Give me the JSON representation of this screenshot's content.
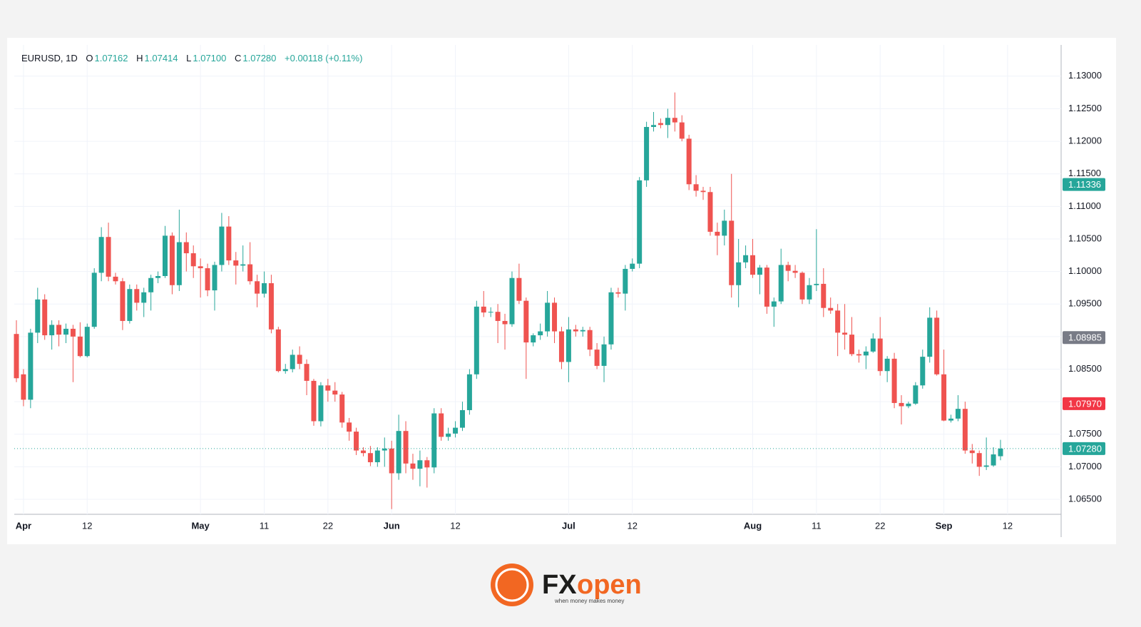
{
  "chart_data": {
    "type": "candlestick",
    "header": {
      "symbol": "EURUSD, 1D",
      "open": {
        "label": "O",
        "value": "1.07162"
      },
      "high": {
        "label": "H",
        "value": "1.07414"
      },
      "low": {
        "label": "L",
        "value": "1.07100"
      },
      "close": {
        "label": "C",
        "value": "1.07280"
      },
      "change": "+0.00118 (+0.11%)"
    },
    "up_color": "#26a69a",
    "down_color": "#ef5350",
    "categories": [
      null,
      "Apr",
      null,
      null,
      null,
      null,
      null,
      null,
      null,
      null,
      "12",
      null,
      null,
      null,
      null,
      null,
      null,
      null,
      null,
      null,
      null,
      null,
      null,
      null,
      null,
      null,
      "May",
      null,
      null,
      null,
      null,
      null,
      null,
      null,
      null,
      "11",
      null,
      null,
      null,
      null,
      null,
      null,
      null,
      null,
      "22",
      null,
      null,
      null,
      null,
      null,
      null,
      null,
      null,
      "Jun",
      null,
      null,
      null,
      null,
      null,
      null,
      null,
      null,
      "12",
      null,
      null,
      null,
      null,
      null,
      null,
      null,
      null,
      null,
      null,
      null,
      null,
      null,
      null,
      null,
      "Jul",
      null,
      null,
      null,
      null,
      null,
      null,
      null,
      null,
      "12",
      null,
      null,
      null,
      null,
      null,
      null,
      null,
      null,
      null,
      null,
      null,
      null,
      null,
      null,
      null,
      null,
      "Aug",
      null,
      null,
      null,
      null,
      null,
      null,
      null,
      null,
      "11",
      null,
      null,
      null,
      null,
      null,
      null,
      null,
      null,
      "22",
      null,
      null,
      null,
      null,
      null,
      null,
      null,
      null,
      "Sep",
      null,
      null,
      null,
      null,
      null,
      null,
      null,
      null,
      "12"
    ],
    "open": [
      1.0904,
      1.0842,
      1.0803,
      1.0906,
      1.0957,
      1.0902,
      1.0918,
      1.0903,
      1.0912,
      1.09,
      1.087,
      1.0915,
      1.0998,
      1.1053,
      1.0992,
      1.0985,
      1.0924,
      1.0973,
      1.0952,
      1.0968,
      1.099,
      1.0993,
      1.1055,
      1.0979,
      1.1045,
      1.1028,
      1.1008,
      1.1005,
      1.0971,
      1.101,
      1.1069,
      1.1017,
      1.1009,
      1.1011,
      1.0985,
      1.0966,
      1.0982,
      1.0911,
      1.0847,
      1.085,
      1.0872,
      1.0858,
      1.0832,
      1.077,
      1.0825,
      1.0817,
      1.0811,
      1.0768,
      1.0754,
      1.0725,
      1.0721,
      1.0707,
      1.0725,
      1.0728,
      1.069,
      1.0755,
      1.0705,
      1.0697,
      1.071,
      1.0699,
      1.0782,
      1.0746,
      1.0751,
      1.076,
      1.0787,
      1.0842,
      1.0946,
      1.0937,
      1.0938,
      1.0924,
      1.0919,
      1.099,
      1.0955,
      1.0891,
      1.0902,
      1.0908,
      1.0952,
      1.0908,
      1.0861,
      1.0911,
      1.0908,
      1.091,
      1.088,
      1.0855,
      1.0888,
      1.0968,
      1.0966,
      1.1004,
      1.1012,
      1.114,
      1.1222,
      1.1228,
      1.1225,
      1.1236,
      1.1229,
      1.1204,
      1.1134,
      1.1124,
      1.1122,
      1.1061,
      1.1055,
      1.1078,
      1.0979,
      1.1014,
      1.1025,
      1.0995,
      1.1006,
      1.0946,
      1.0954,
      1.101,
      1.1001,
      1.0998,
      1.0957,
      1.0979,
      1.0981,
      1.0944,
      1.094,
      1.0906,
      1.0903,
      1.0873,
      1.0871,
      1.0877,
      1.0897,
      1.0847,
      1.0866,
      1.0798,
      1.0793,
      1.0797,
      1.0825,
      1.0869,
      1.0929,
      1.0842,
      1.0771,
      1.0774,
      1.0789,
      1.0725,
      1.0721,
      1.07,
      1.0702,
      1.07162,
      null
    ],
    "high": [
      1.0925,
      1.085,
      1.0912,
      1.0975,
      1.0965,
      1.0925,
      1.0925,
      1.092,
      1.0918,
      1.0922,
      1.092,
      1.1005,
      1.1068,
      1.1075,
      1.0998,
      1.099,
      1.098,
      1.098,
      1.0975,
      1.0995,
      1.1,
      1.107,
      1.106,
      1.1095,
      1.106,
      1.104,
      1.102,
      1.1012,
      1.1015,
      1.109,
      1.1085,
      1.103,
      1.104,
      1.1045,
      1.0995,
      1.1,
      1.0995,
      1.0915,
      1.0858,
      1.088,
      1.0885,
      1.0865,
      1.0835,
      1.083,
      1.0835,
      1.083,
      1.0815,
      1.0775,
      1.076,
      1.073,
      1.0732,
      1.073,
      1.0745,
      1.074,
      1.078,
      1.077,
      1.072,
      1.0725,
      1.0715,
      1.079,
      1.079,
      1.076,
      1.077,
      1.08,
      1.085,
      1.0955,
      1.097,
      1.0945,
      1.095,
      1.0935,
      1.1,
      1.1012,
      1.096,
      1.0905,
      1.092,
      1.097,
      1.096,
      1.0915,
      1.093,
      1.0918,
      1.0915,
      1.0915,
      1.089,
      1.09,
      1.0975,
      1.0975,
      1.101,
      1.102,
      1.1145,
      1.123,
      1.1245,
      1.1235,
      1.125,
      1.1275,
      1.124,
      1.121,
      1.1148,
      1.113,
      1.113,
      1.1075,
      1.1095,
      1.115,
      1.105,
      1.104,
      1.105,
      1.101,
      1.101,
      1.096,
      1.1035,
      1.1015,
      1.101,
      1.1,
      1.099,
      1.1065,
      1.1005,
      1.096,
      1.095,
      1.095,
      1.093,
      1.088,
      1.0885,
      1.0905,
      1.093,
      1.087,
      1.0875,
      1.081,
      1.08,
      1.083,
      1.088,
      1.0945,
      1.094,
      1.088,
      1.078,
      1.081,
      1.08,
      1.0735,
      1.0725,
      1.0745,
      1.073,
      1.07414,
      null
    ],
    "low": [
      1.083,
      1.0793,
      1.079,
      1.089,
      1.0895,
      1.088,
      1.0885,
      1.089,
      1.083,
      1.0868,
      1.0868,
      1.0912,
      1.0985,
      1.0985,
      1.098,
      1.091,
      1.092,
      1.094,
      1.093,
      1.094,
      1.0982,
      1.099,
      1.0965,
      1.097,
      1.1,
      1.099,
      1.096,
      1.0962,
      1.094,
      1.1,
      1.101,
      1.098,
      1.1,
      1.098,
      1.0945,
      1.096,
      1.0905,
      1.0845,
      1.0843,
      1.0845,
      1.085,
      1.081,
      1.0763,
      1.0762,
      1.08,
      1.08,
      1.076,
      1.074,
      1.0718,
      1.0716,
      1.0701,
      1.07,
      1.07,
      1.0635,
      1.068,
      1.069,
      1.068,
      1.067,
      1.0668,
      1.069,
      1.074,
      1.074,
      1.0745,
      1.0755,
      1.078,
      1.0835,
      1.093,
      1.093,
      1.089,
      1.088,
      1.0915,
      1.095,
      1.0835,
      1.0885,
      1.0895,
      1.09,
      1.089,
      1.085,
      1.083,
      1.09,
      1.09,
      1.087,
      1.085,
      1.083,
      1.088,
      1.096,
      1.094,
      1.1,
      1.1005,
      1.113,
      1.1215,
      1.122,
      1.1205,
      1.1215,
      1.12,
      1.1125,
      1.1115,
      1.111,
      1.1055,
      1.1025,
      1.104,
      1.096,
      1.0945,
      1.1005,
      1.099,
      1.0965,
      1.0935,
      1.0915,
      1.095,
      1.0985,
      1.099,
      1.095,
      1.095,
      1.097,
      1.093,
      1.0935,
      1.087,
      1.088,
      1.087,
      1.086,
      1.085,
      1.0875,
      1.084,
      1.083,
      1.079,
      1.0765,
      1.079,
      1.0795,
      1.082,
      1.086,
      1.084,
      1.077,
      1.0768,
      1.077,
      1.072,
      1.0705,
      1.0686,
      1.0695,
      1.07,
      1.071,
      null
    ],
    "close": [
      1.0836,
      1.0803,
      1.0906,
      1.0957,
      1.0902,
      1.0918,
      1.0903,
      1.0912,
      1.09,
      1.087,
      1.0915,
      1.0998,
      1.1053,
      1.0992,
      1.0985,
      1.0924,
      1.0973,
      1.0952,
      1.0968,
      1.099,
      1.0993,
      1.1055,
      1.0979,
      1.1045,
      1.1028,
      1.1008,
      1.1005,
      1.0971,
      1.101,
      1.1069,
      1.1017,
      1.1009,
      1.1011,
      1.0985,
      1.0966,
      1.0982,
      1.0911,
      1.0847,
      1.085,
      1.0872,
      1.0858,
      1.0832,
      1.077,
      1.0825,
      1.0817,
      1.0811,
      1.0768,
      1.0754,
      1.0725,
      1.0721,
      1.0707,
      1.0725,
      1.0728,
      1.069,
      1.0755,
      1.0705,
      1.0697,
      1.071,
      1.0699,
      1.0782,
      1.0746,
      1.0751,
      1.076,
      1.0787,
      1.0842,
      1.0946,
      1.0937,
      1.0938,
      1.0924,
      1.0919,
      1.099,
      1.0955,
      1.0891,
      1.0902,
      1.0908,
      1.0952,
      1.0908,
      1.0861,
      1.0911,
      1.0908,
      1.091,
      1.088,
      1.0855,
      1.0888,
      1.0968,
      1.0966,
      1.1004,
      1.1012,
      1.114,
      1.1222,
      1.1225,
      1.1225,
      1.1236,
      1.1229,
      1.1204,
      1.1134,
      1.1124,
      1.1122,
      1.1061,
      1.1055,
      1.1078,
      1.0979,
      1.1014,
      1.1025,
      1.0995,
      1.1006,
      1.0946,
      1.0954,
      1.101,
      1.1001,
      1.0998,
      1.0957,
      1.0979,
      1.0981,
      1.0944,
      1.094,
      1.0906,
      1.0903,
      1.0873,
      1.0871,
      1.0877,
      1.0897,
      1.0847,
      1.0866,
      1.0798,
      1.0793,
      1.0797,
      1.0825,
      1.0869,
      1.0929,
      1.0842,
      1.0771,
      1.0774,
      1.0789,
      1.0725,
      1.0721,
      1.07,
      1.0702,
      1.0719,
      1.0728,
      null
    ],
    "ylim": [
      1.0627,
      1.1348
    ],
    "yticks": [
      {
        "value": 1.065,
        "label": "1.06500"
      },
      {
        "value": 1.07,
        "label": "1.07000"
      },
      {
        "value": 1.075,
        "label": "1.07500"
      },
      {
        "value": 1.08,
        "label": "1.08000"
      },
      {
        "value": 1.085,
        "label": "1.08500"
      },
      {
        "value": 1.09,
        "label": "1.09000"
      },
      {
        "value": 1.095,
        "label": "1.09500"
      },
      {
        "value": 1.1,
        "label": "1.10000"
      },
      {
        "value": 1.105,
        "label": "1.10500"
      },
      {
        "value": 1.11,
        "label": "1.11000"
      },
      {
        "value": 1.115,
        "label": "1.11500"
      },
      {
        "value": 1.12,
        "label": "1.12000"
      },
      {
        "value": 1.125,
        "label": "1.12500"
      },
      {
        "value": 1.13,
        "label": "1.13000"
      }
    ],
    "price_labels": [
      {
        "value": 1.11336,
        "label": "1.11336",
        "color": "#26a69a"
      },
      {
        "value": 1.08985,
        "label": "1.08985",
        "color": "#787b86"
      },
      {
        "value": 1.0797,
        "label": "1.07970",
        "color": "#f23645"
      },
      {
        "value": 1.0728,
        "label": "1.07280",
        "color": "#26a69a",
        "line": true
      }
    ],
    "grid": true
  },
  "footer": {
    "brand_a": "FX",
    "brand_b": "open",
    "tagline": "when money makes money"
  }
}
